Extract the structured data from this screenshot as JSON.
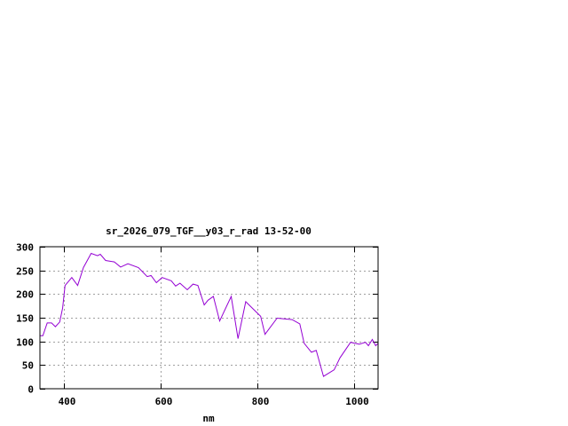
{
  "chart_data": {
    "type": "line",
    "title": "sr_2026_079_TGF__y03_r_rad 13-52-00",
    "xlabel": "nm",
    "ylabel": "",
    "xlim": [
      350,
      1050
    ],
    "ylim": [
      0,
      300
    ],
    "xticks": [
      400,
      600,
      800,
      1000
    ],
    "yticks": [
      0,
      50,
      100,
      150,
      200,
      250,
      300
    ],
    "grid": true,
    "legend": "none",
    "line_color": "#9400d3",
    "x": [
      350,
      356,
      365,
      374,
      382,
      391,
      397,
      402,
      416,
      428,
      440,
      456,
      469,
      475,
      486,
      504,
      517,
      532,
      554,
      572,
      580,
      591,
      603,
      622,
      631,
      640,
      655,
      667,
      677,
      690,
      698,
      709,
      722,
      746,
      760,
      776,
      798,
      807,
      816,
      841,
      872,
      888,
      897,
      912,
      922,
      937,
      959,
      971,
      993,
      1011,
      1024,
      1030,
      1038,
      1045,
      1050
    ],
    "y": [
      112,
      112,
      139,
      139,
      131,
      141,
      171,
      218,
      235,
      218,
      256,
      286,
      281,
      284,
      271,
      268,
      257,
      264,
      256,
      237,
      239,
      224,
      235,
      228,
      217,
      223,
      209,
      221,
      218,
      177,
      187,
      195,
      143,
      195,
      106,
      184,
      162,
      153,
      115,
      149,
      146,
      137,
      96,
      77,
      81,
      26,
      40,
      65,
      98,
      94,
      98,
      91,
      104,
      91,
      96
    ]
  }
}
